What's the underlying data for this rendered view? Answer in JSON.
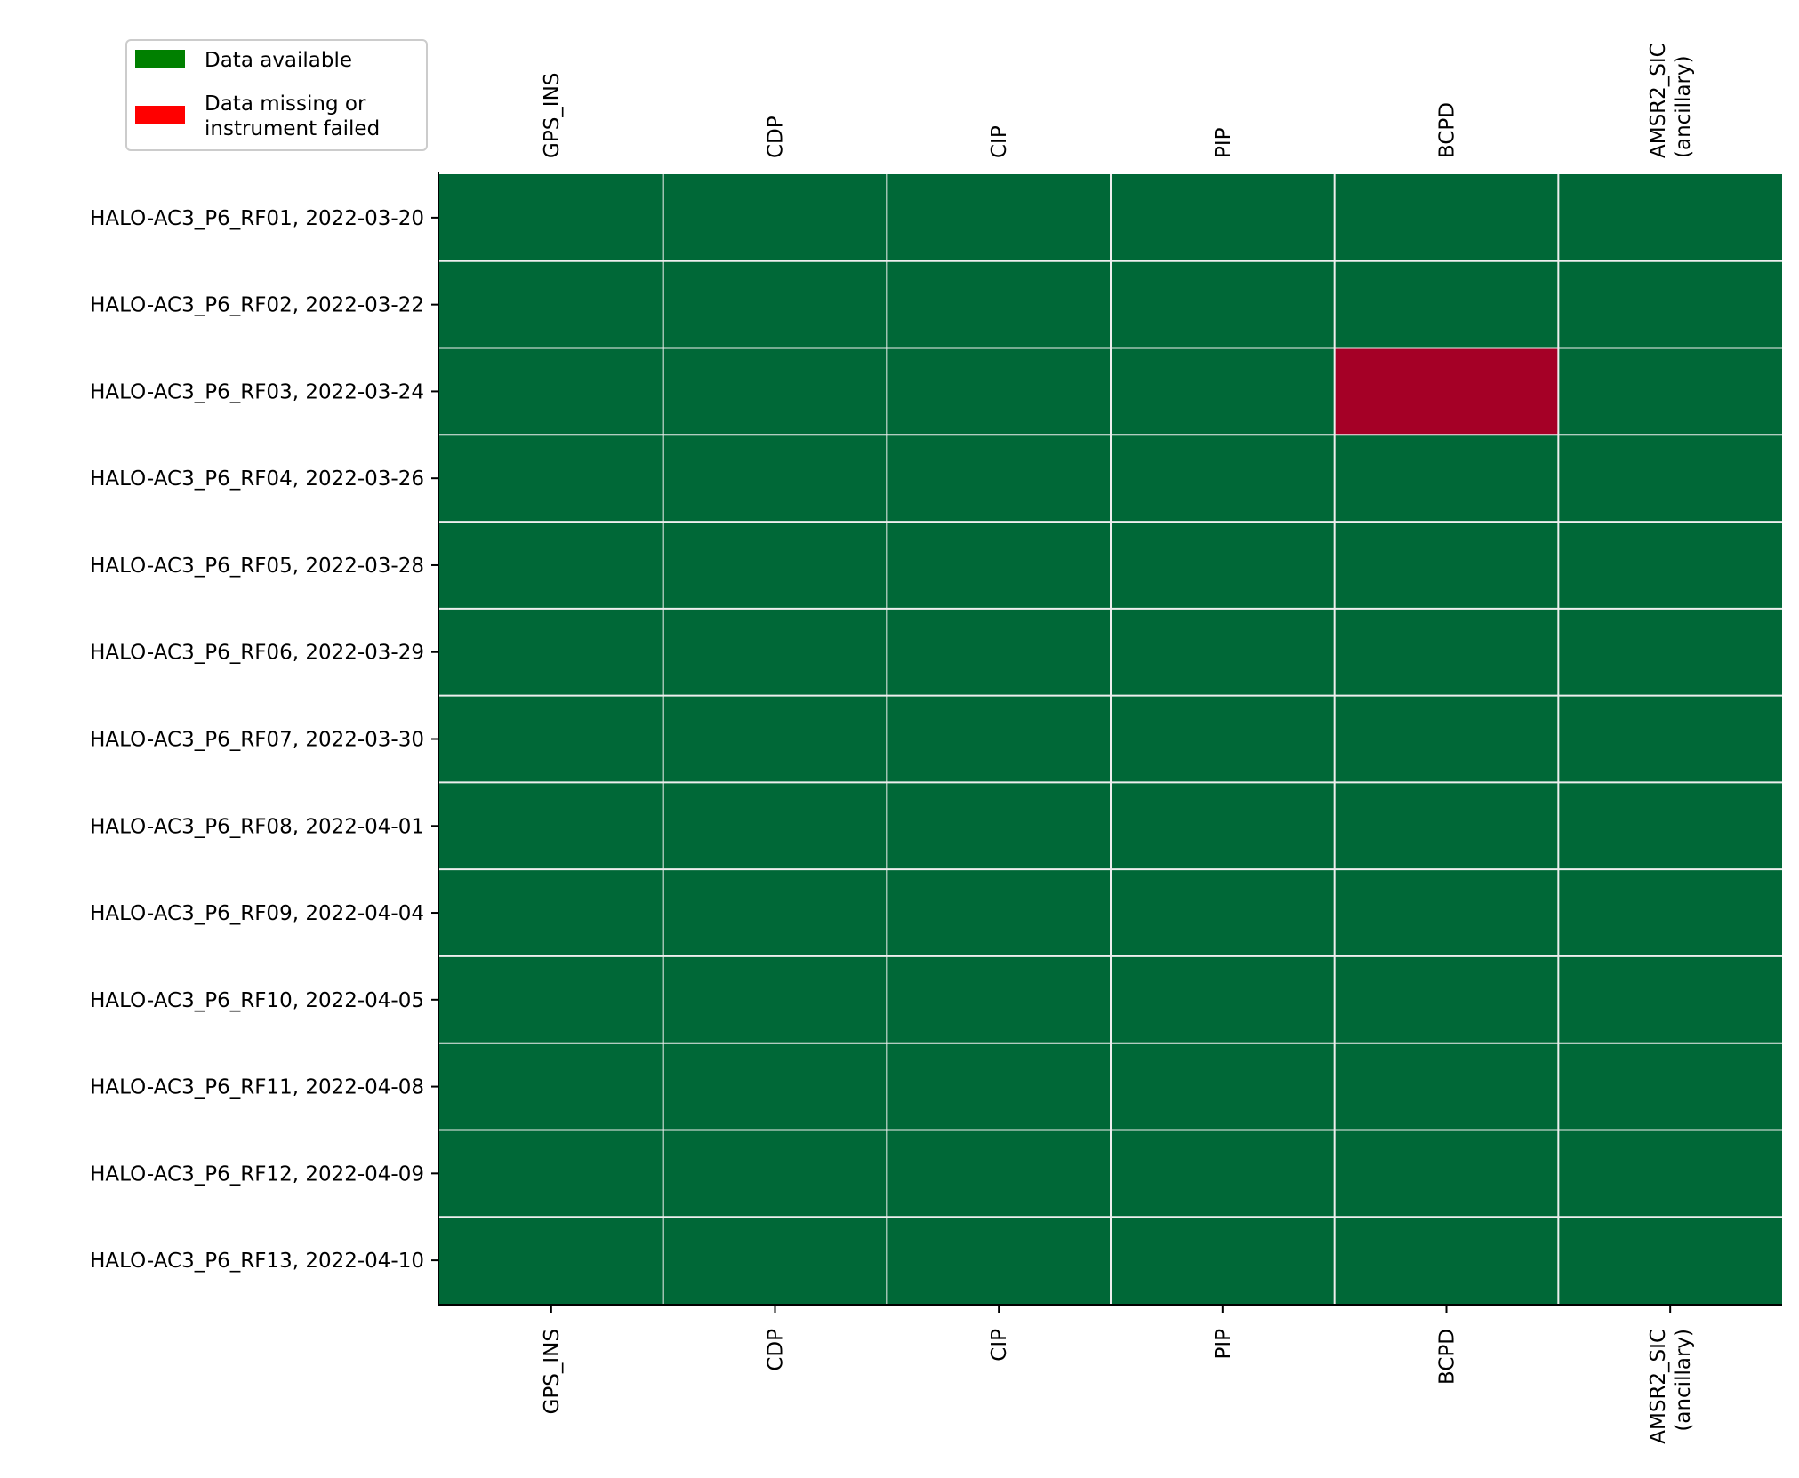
{
  "chart_data": {
    "type": "heatmap",
    "title": "",
    "xlabel": "",
    "ylabel": "",
    "columns": [
      {
        "label": "GPS_INS"
      },
      {
        "label": "CDP"
      },
      {
        "label": "CIP"
      },
      {
        "label": "PIP"
      },
      {
        "label": "BCPD"
      },
      {
        "label": "AMSR2_SIC\n(ancillary)"
      }
    ],
    "rows": [
      {
        "label": "HALO-AC3_P6_RF01, 2022-03-20",
        "values": [
          1,
          1,
          1,
          1,
          1,
          1
        ]
      },
      {
        "label": "HALO-AC3_P6_RF02, 2022-03-22",
        "values": [
          1,
          1,
          1,
          1,
          1,
          1
        ]
      },
      {
        "label": "HALO-AC3_P6_RF03, 2022-03-24",
        "values": [
          1,
          1,
          1,
          1,
          0,
          1
        ]
      },
      {
        "label": "HALO-AC3_P6_RF04, 2022-03-26",
        "values": [
          1,
          1,
          1,
          1,
          1,
          1
        ]
      },
      {
        "label": "HALO-AC3_P6_RF05, 2022-03-28",
        "values": [
          1,
          1,
          1,
          1,
          1,
          1
        ]
      },
      {
        "label": "HALO-AC3_P6_RF06, 2022-03-29",
        "values": [
          1,
          1,
          1,
          1,
          1,
          1
        ]
      },
      {
        "label": "HALO-AC3_P6_RF07, 2022-03-30",
        "values": [
          1,
          1,
          1,
          1,
          1,
          1
        ]
      },
      {
        "label": "HALO-AC3_P6_RF08, 2022-04-01",
        "values": [
          1,
          1,
          1,
          1,
          1,
          1
        ]
      },
      {
        "label": "HALO-AC3_P6_RF09, 2022-04-04",
        "values": [
          1,
          1,
          1,
          1,
          1,
          1
        ]
      },
      {
        "label": "HALO-AC3_P6_RF10, 2022-04-05",
        "values": [
          1,
          1,
          1,
          1,
          1,
          1
        ]
      },
      {
        "label": "HALO-AC3_P6_RF11, 2022-04-08",
        "values": [
          1,
          1,
          1,
          1,
          1,
          1
        ]
      },
      {
        "label": "HALO-AC3_P6_RF12, 2022-04-09",
        "values": [
          1,
          1,
          1,
          1,
          1,
          1
        ]
      },
      {
        "label": "HALO-AC3_P6_RF13, 2022-04-10",
        "values": [
          1,
          1,
          1,
          1,
          1,
          1
        ]
      }
    ],
    "value_meaning": {
      "1": "Data available",
      "0": "Data missing or instrument failed"
    },
    "cell_colors": {
      "1": "#006837",
      "0": "#a50026"
    },
    "grid": true,
    "grid_color": "#eeeeee",
    "legend_placement": "upper-left, outside plot",
    "legend": [
      {
        "label": "Data available",
        "color": "#008000"
      },
      {
        "label": "Data missing or\ninstrument failed",
        "color": "#ff0000"
      }
    ]
  }
}
